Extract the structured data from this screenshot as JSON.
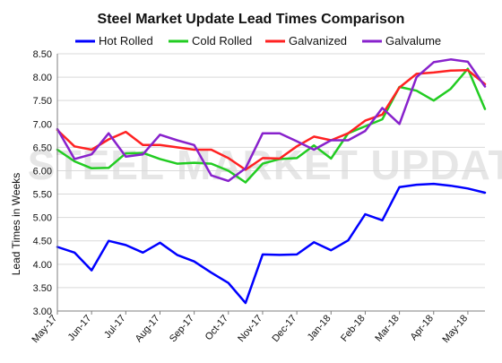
{
  "chart_data": {
    "type": "line",
    "title": "Steel Market Update Lead Times Comparison",
    "xlabel": "",
    "ylabel": "Lead Times in Weeks",
    "ylim": [
      3.0,
      8.5
    ],
    "yticks": [
      "3.00",
      "3.50",
      "4.00",
      "4.50",
      "5.00",
      "5.50",
      "6.00",
      "6.50",
      "7.00",
      "7.50",
      "8.00",
      "8.50"
    ],
    "ytick_values": [
      3.0,
      3.5,
      4.0,
      4.5,
      5.0,
      5.5,
      6.0,
      6.5,
      7.0,
      7.5,
      8.0,
      8.5
    ],
    "x_tick_labels": [
      "May-17",
      "Jun-17",
      "Jul-17",
      "Aug-17",
      "Sep-17",
      "Oct-17",
      "Nov-17",
      "Dec-17",
      "Jan-18",
      "Feb-18",
      "Mar-18",
      "Apr-18",
      "May-18"
    ],
    "x_tick_positions": [
      0,
      2,
      4,
      6,
      8,
      10,
      12,
      14,
      16,
      18,
      20,
      22,
      24
    ],
    "x_count": 26,
    "grid": true,
    "legend": "top",
    "watermark": "STEEL MARKET UPDATE",
    "series": [
      {
        "name": "Hot Rolled",
        "color": "#0000ff",
        "values": [
          4.37,
          4.25,
          3.87,
          4.5,
          4.41,
          4.25,
          4.46,
          4.2,
          4.06,
          3.82,
          3.6,
          3.17,
          4.21,
          4.2,
          4.21,
          4.47,
          4.3,
          4.51,
          5.07,
          4.94,
          5.65,
          5.7,
          5.72,
          5.68,
          5.62,
          5.53
        ]
      },
      {
        "name": "Cold Rolled",
        "color": "#22cc22",
        "values": [
          6.45,
          6.2,
          6.05,
          6.06,
          6.37,
          6.38,
          6.25,
          6.15,
          6.17,
          6.15,
          6.0,
          5.75,
          6.15,
          6.25,
          6.27,
          6.54,
          6.26,
          6.8,
          6.95,
          7.1,
          7.79,
          7.71,
          7.5,
          7.75,
          8.18,
          7.32
        ]
      },
      {
        "name": "Galvanized",
        "color": "#ff2222",
        "values": [
          6.87,
          6.52,
          6.45,
          6.67,
          6.83,
          6.55,
          6.55,
          6.5,
          6.45,
          6.45,
          6.27,
          6.02,
          6.27,
          6.26,
          6.52,
          6.73,
          6.65,
          6.8,
          7.07,
          7.2,
          7.78,
          8.07,
          8.1,
          8.14,
          8.15,
          7.85
        ]
      },
      {
        "name": "Galvalume",
        "color": "#8822cc",
        "values": [
          6.89,
          6.25,
          6.35,
          6.8,
          6.3,
          6.35,
          6.77,
          6.65,
          6.55,
          5.9,
          5.78,
          6.05,
          6.8,
          6.8,
          6.63,
          6.45,
          6.65,
          6.65,
          6.85,
          7.34,
          7.0,
          8.0,
          8.32,
          8.38,
          8.33,
          7.8
        ]
      }
    ]
  }
}
